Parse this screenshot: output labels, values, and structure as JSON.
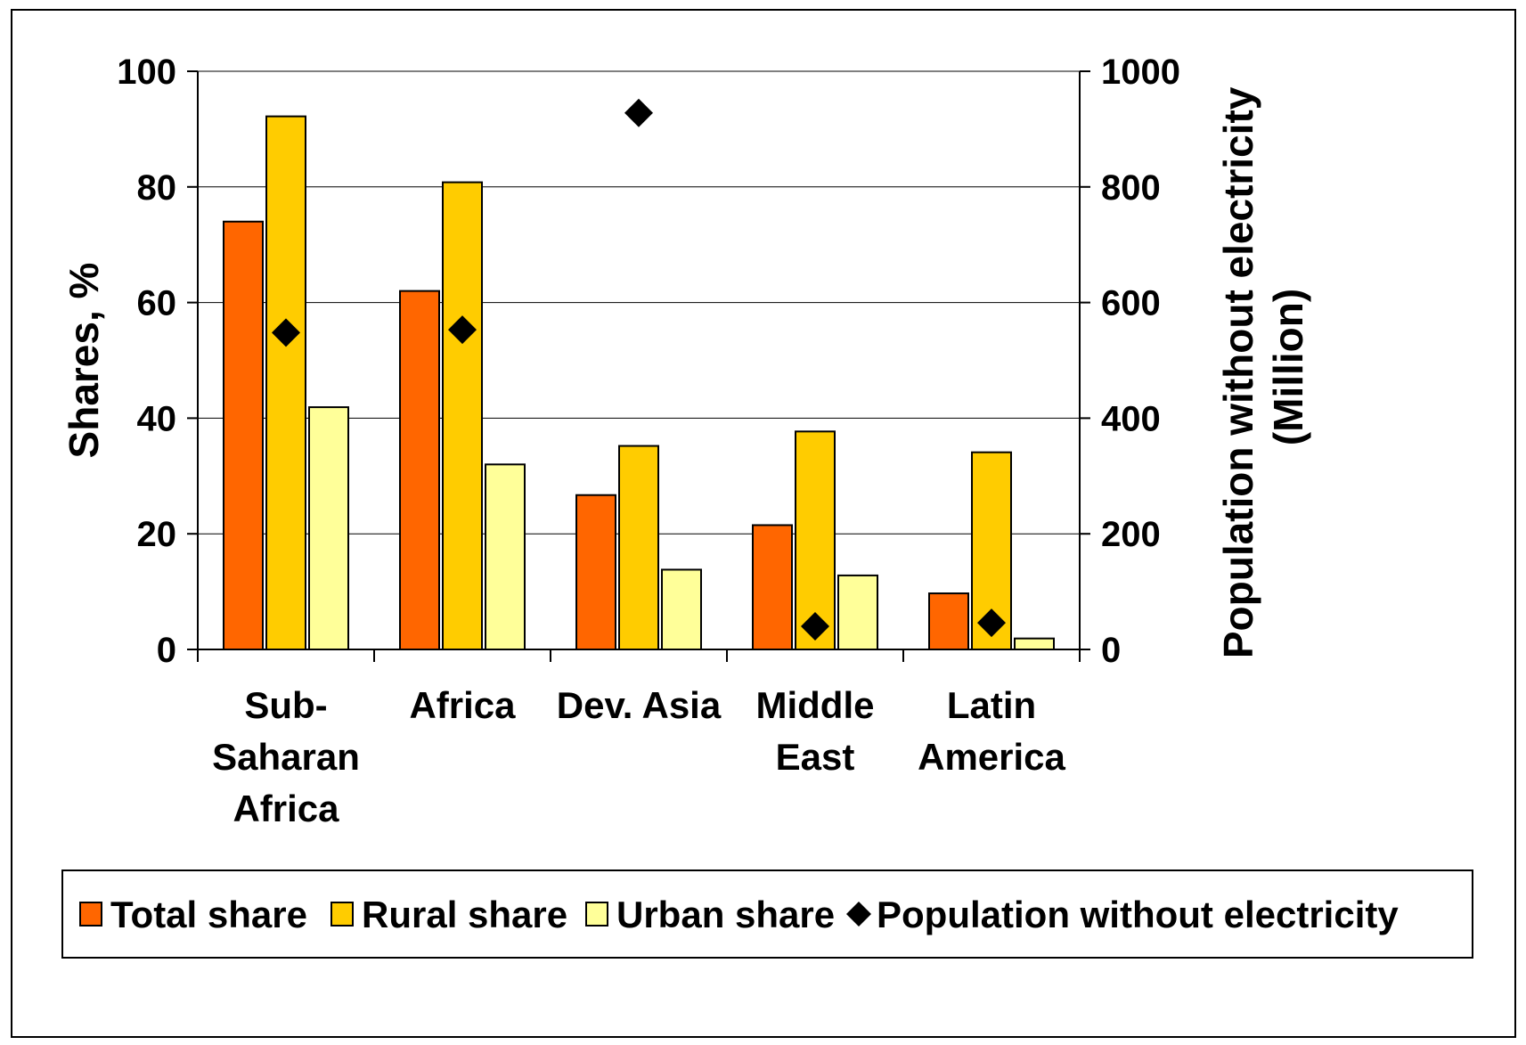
{
  "chart_data": {
    "type": "bar",
    "categories": [
      [
        "Sub-",
        "Saharan",
        "Africa"
      ],
      [
        "Africa"
      ],
      [
        "Dev. Asia"
      ],
      [
        "Middle",
        "East"
      ],
      [
        "Latin",
        "America"
      ]
    ],
    "series": [
      {
        "name": "Total share",
        "axis": "left",
        "kind": "bar",
        "color": "#FF6600",
        "values": [
          74,
          62,
          26.7,
          21.5,
          9.7
        ]
      },
      {
        "name": "Rural share",
        "axis": "left",
        "kind": "bar",
        "color": "#FFCC00",
        "values": [
          92.2,
          80.8,
          35.2,
          37.7,
          34.1
        ]
      },
      {
        "name": "Urban share",
        "axis": "left",
        "kind": "bar",
        "color": "#FFFF99",
        "values": [
          41.9,
          32,
          13.8,
          12.8,
          1.9
        ]
      },
      {
        "name": "Population without electricity",
        "axis": "right",
        "kind": "marker",
        "marker": "diamond",
        "color": "#000000",
        "values": [
          548,
          553,
          928,
          40,
          46
        ]
      }
    ],
    "y_left": {
      "label": "Shares, %",
      "lim": [
        0,
        100
      ],
      "ticks": [
        0,
        20,
        40,
        60,
        80,
        100
      ]
    },
    "y_right": {
      "label_lines": [
        "Population without electricity",
        "(Million)"
      ],
      "lim": [
        0,
        1000
      ],
      "ticks": [
        0,
        200,
        400,
        600,
        800,
        1000
      ]
    },
    "grid": true,
    "legend": "bottom"
  }
}
